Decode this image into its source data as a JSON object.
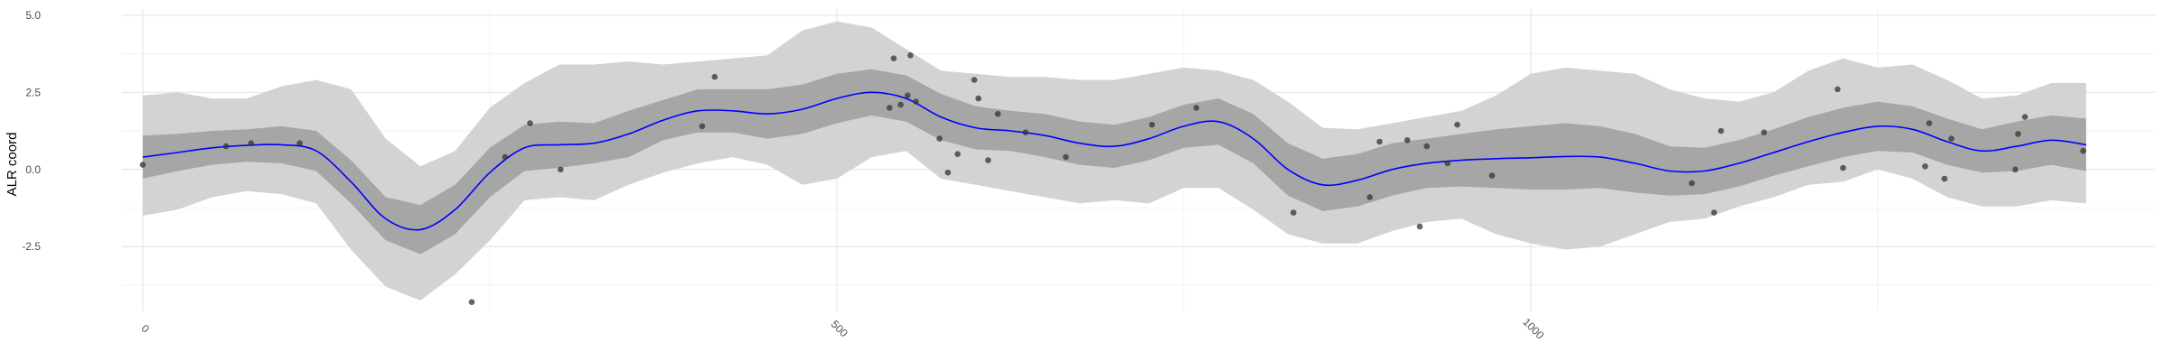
{
  "chart_data": {
    "type": "line",
    "ylabel": "ALR coord",
    "xlabel": "",
    "xlim": [
      -15,
      1450
    ],
    "ylim": [
      -4.6,
      5.2
    ],
    "x_ticks": [
      0,
      500,
      1000
    ],
    "x_tick_labels": [
      "0",
      "500",
      "1000"
    ],
    "y_ticks": [
      -2.5,
      0.0,
      2.5,
      5.0
    ],
    "y_tick_labels": [
      "-2.5",
      "0.0",
      "2.5",
      "5.0"
    ],
    "grid": true,
    "colors": {
      "mean_line": "#0000ff",
      "inner_band": "#a6a6a6",
      "outer_band": "#d3d3d3",
      "points": "#333333"
    },
    "mean": {
      "x": [
        0,
        25,
        50,
        75,
        100,
        125,
        150,
        175,
        200,
        225,
        250,
        275,
        300,
        325,
        350,
        375,
        400,
        425,
        450,
        475,
        500,
        525,
        550,
        575,
        600,
        625,
        650,
        675,
        700,
        725,
        750,
        775,
        800,
        825,
        850,
        875,
        900,
        925,
        950,
        975,
        1000,
        1025,
        1050,
        1075,
        1100,
        1125,
        1150,
        1175,
        1200,
        1225,
        1250,
        1275,
        1300,
        1325,
        1350,
        1375,
        1400
      ],
      "y": [
        0.4,
        0.55,
        0.7,
        0.78,
        0.8,
        0.6,
        -0.4,
        -1.6,
        -1.95,
        -1.3,
        -0.1,
        0.7,
        0.8,
        0.85,
        1.15,
        1.6,
        1.9,
        1.9,
        1.8,
        1.95,
        2.3,
        2.5,
        2.3,
        1.7,
        1.35,
        1.25,
        1.1,
        0.85,
        0.75,
        1.0,
        1.4,
        1.55,
        1.0,
        0.0,
        -0.5,
        -0.35,
        0.0,
        0.2,
        0.3,
        0.35,
        0.38,
        0.42,
        0.4,
        0.2,
        -0.05,
        -0.05,
        0.2,
        0.55,
        0.9,
        1.2,
        1.4,
        1.3,
        0.9,
        0.6,
        0.75,
        0.95,
        0.8
      ]
    },
    "inner_band": {
      "lower": [
        -0.3,
        -0.05,
        0.15,
        0.25,
        0.2,
        -0.05,
        -1.1,
        -2.3,
        -2.75,
        -2.1,
        -0.9,
        -0.05,
        0.05,
        0.2,
        0.4,
        0.95,
        1.2,
        1.2,
        1.0,
        1.15,
        1.5,
        1.75,
        1.55,
        0.95,
        0.65,
        0.6,
        0.4,
        0.15,
        0.05,
        0.3,
        0.7,
        0.8,
        0.2,
        -0.85,
        -1.35,
        -1.2,
        -0.85,
        -0.6,
        -0.55,
        -0.6,
        -0.65,
        -0.65,
        -0.6,
        -0.75,
        -0.85,
        -0.8,
        -0.55,
        -0.2,
        0.1,
        0.4,
        0.6,
        0.55,
        0.15,
        -0.1,
        -0.05,
        0.15,
        -0.05
      ],
      "upper": [
        1.1,
        1.15,
        1.25,
        1.3,
        1.4,
        1.25,
        0.3,
        -0.9,
        -1.15,
        -0.5,
        0.7,
        1.45,
        1.55,
        1.5,
        1.9,
        2.25,
        2.6,
        2.6,
        2.6,
        2.75,
        3.1,
        3.25,
        3.05,
        2.45,
        2.05,
        1.9,
        1.8,
        1.55,
        1.45,
        1.7,
        2.1,
        2.3,
        1.8,
        0.85,
        0.35,
        0.5,
        0.85,
        1.0,
        1.15,
        1.3,
        1.4,
        1.5,
        1.4,
        1.15,
        0.75,
        0.7,
        0.95,
        1.3,
        1.7,
        2.0,
        2.2,
        2.05,
        1.65,
        1.3,
        1.55,
        1.75,
        1.65
      ]
    },
    "outer_band": {
      "lower": [
        -1.5,
        -1.3,
        -0.9,
        -0.7,
        -0.8,
        -1.1,
        -2.6,
        -3.8,
        -4.25,
        -3.4,
        -2.3,
        -1.0,
        -0.9,
        -1.0,
        -0.5,
        -0.1,
        0.2,
        0.4,
        0.15,
        -0.5,
        -0.3,
        0.4,
        0.6,
        -0.3,
        -0.5,
        -0.7,
        -0.9,
        -1.1,
        -1.0,
        -1.1,
        -0.6,
        -0.6,
        -1.3,
        -2.1,
        -2.4,
        -2.4,
        -2.0,
        -1.7,
        -1.6,
        -2.1,
        -2.4,
        -2.6,
        -2.5,
        -2.1,
        -1.7,
        -1.6,
        -1.2,
        -0.9,
        -0.5,
        -0.4,
        0.0,
        -0.3,
        -0.9,
        -1.2,
        -1.2,
        -1.0,
        -1.1
      ],
      "upper": [
        2.4,
        2.5,
        2.3,
        2.3,
        2.7,
        2.9,
        2.6,
        1.0,
        0.1,
        0.6,
        2.0,
        2.8,
        3.4,
        3.4,
        3.5,
        3.4,
        3.5,
        3.6,
        3.7,
        4.5,
        4.8,
        4.6,
        3.9,
        3.2,
        3.1,
        3.0,
        3.0,
        2.9,
        2.9,
        3.1,
        3.3,
        3.2,
        2.9,
        2.2,
        1.35,
        1.3,
        1.5,
        1.7,
        1.9,
        2.4,
        3.1,
        3.3,
        3.2,
        3.1,
        2.6,
        2.3,
        2.2,
        2.5,
        3.2,
        3.6,
        3.3,
        3.4,
        2.9,
        2.3,
        2.4,
        2.8,
        2.8
      ]
    },
    "points": [
      [
        0,
        0.15
      ],
      [
        60,
        0.75
      ],
      [
        78,
        0.85
      ],
      [
        113,
        0.85
      ],
      [
        237,
        -4.3
      ],
      [
        261,
        0.4
      ],
      [
        279,
        1.5
      ],
      [
        301,
        0.0
      ],
      [
        403,
        1.4
      ],
      [
        412,
        3.0
      ],
      [
        538,
        2.0
      ],
      [
        541,
        3.6
      ],
      [
        546,
        2.1
      ],
      [
        551,
        2.4
      ],
      [
        553,
        3.7
      ],
      [
        557,
        2.2
      ],
      [
        574,
        1.0
      ],
      [
        580,
        -0.1
      ],
      [
        587,
        0.5
      ],
      [
        599,
        2.9
      ],
      [
        602,
        2.3
      ],
      [
        609,
        0.3
      ],
      [
        616,
        1.8
      ],
      [
        636,
        1.2
      ],
      [
        665,
        0.4
      ],
      [
        727,
        1.45
      ],
      [
        759,
        2.0
      ],
      [
        829,
        -1.4
      ],
      [
        884,
        -0.9
      ],
      [
        891,
        0.9
      ],
      [
        911,
        0.95
      ],
      [
        920,
        -1.85
      ],
      [
        925,
        0.75
      ],
      [
        940,
        0.2
      ],
      [
        947,
        1.45
      ],
      [
        972,
        -0.2
      ],
      [
        1116,
        -0.45
      ],
      [
        1132,
        -1.4
      ],
      [
        1137,
        1.25
      ],
      [
        1168,
        1.2
      ],
      [
        1225,
        0.05
      ],
      [
        1221,
        2.6
      ],
      [
        1284,
        0.1
      ],
      [
        1287,
        1.5
      ],
      [
        1298,
        -0.3
      ],
      [
        1303,
        1.0
      ],
      [
        1349,
        0.0
      ],
      [
        1351,
        1.15
      ],
      [
        1356,
        1.7
      ],
      [
        1398,
        0.6
      ]
    ]
  }
}
